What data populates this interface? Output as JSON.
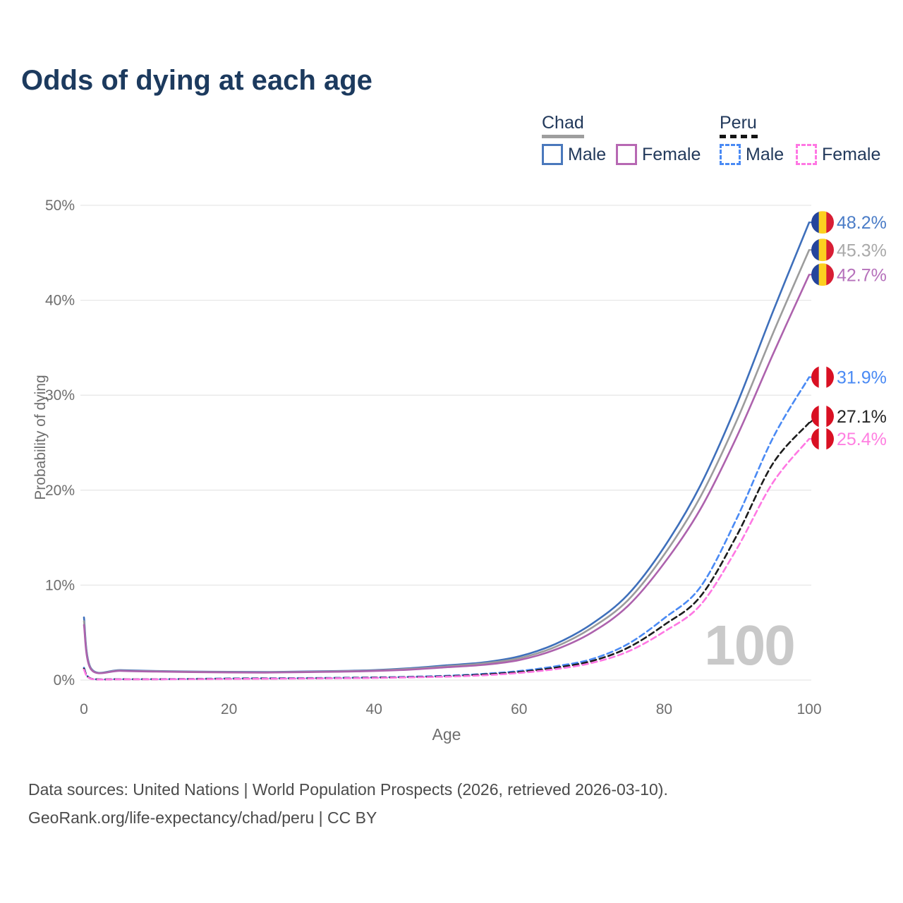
{
  "title": "Odds of dying at each age",
  "watermark": "100",
  "legend": {
    "groups": [
      {
        "name": "Chad",
        "line_style": "solid",
        "line_color": "#9c9c9c",
        "items": [
          {
            "label": "Male",
            "color": "#3e6fbb",
            "style": "solid"
          },
          {
            "label": "Female",
            "color": "#ad62ad",
            "style": "solid"
          }
        ]
      },
      {
        "name": "Peru",
        "line_style": "dashed",
        "line_color": "#141414",
        "items": [
          {
            "label": "Male",
            "color": "#4a8af4",
            "style": "dashed"
          },
          {
            "label": "Female",
            "color": "#ff77e3",
            "style": "dashed"
          }
        ]
      }
    ]
  },
  "axes": {
    "x": {
      "title": "Age",
      "ticks": [
        0,
        20,
        40,
        60,
        80,
        100
      ]
    },
    "y": {
      "title": "Probability of dying",
      "ticks": [
        0,
        10,
        20,
        30,
        40,
        50
      ],
      "tick_suffix": "%"
    }
  },
  "footer": {
    "line1": "Data sources: United Nations | World Population Prospects (2026, retrieved 2026-03-10).",
    "line2": "GeoRank.org/life-expectancy/chad/peru | CC BY"
  },
  "chart_data": {
    "type": "line",
    "title": "Odds of dying at each age",
    "xlabel": "Age",
    "ylabel": "Probability of dying",
    "xlim": [
      0,
      100
    ],
    "ylim": [
      0,
      50
    ],
    "grid": "horizontal",
    "legend_position": "top-right",
    "x_ages": [
      0,
      1,
      5,
      10,
      15,
      20,
      25,
      30,
      35,
      40,
      45,
      50,
      55,
      60,
      65,
      70,
      75,
      80,
      85,
      90,
      95,
      100
    ],
    "flags": {
      "chad": [
        "#24449c",
        "#fcd020",
        "#d81e34"
      ],
      "peru": [
        "#d91023",
        "#ffffff",
        "#d91023"
      ]
    },
    "series": [
      {
        "name": "Chad Male",
        "country": "Chad",
        "sex": "Male",
        "style": "solid",
        "color": "#3e6fbb",
        "flag": "chad",
        "end_label": "48.2%",
        "end_label_color": "#4a7cc7",
        "values": [
          6.6,
          1.2,
          1.05,
          0.95,
          0.9,
          0.87,
          0.85,
          0.9,
          0.95,
          1.05,
          1.25,
          1.55,
          1.85,
          2.5,
          3.8,
          5.9,
          9.0,
          14.0,
          20.5,
          29.0,
          38.8,
          48.2
        ]
      },
      {
        "name": "Chad Both sexes",
        "country": "Chad",
        "sex": "Both",
        "style": "solid",
        "color": "#9c9c9c",
        "flag": "chad",
        "end_label": "45.3%",
        "end_label_color": "#a9a9a9",
        "values": [
          6.2,
          1.15,
          1.0,
          0.92,
          0.87,
          0.84,
          0.82,
          0.86,
          0.92,
          1.0,
          1.18,
          1.45,
          1.75,
          2.3,
          3.5,
          5.5,
          8.4,
          13.2,
          19.3,
          27.3,
          36.5,
          45.3
        ]
      },
      {
        "name": "Chad Female",
        "country": "Chad",
        "sex": "Female",
        "style": "solid",
        "color": "#ad62ad",
        "flag": "chad",
        "end_label": "42.7%",
        "end_label_color": "#b671bb",
        "values": [
          5.8,
          1.1,
          0.97,
          0.89,
          0.84,
          0.8,
          0.79,
          0.83,
          0.88,
          0.96,
          1.1,
          1.35,
          1.6,
          2.1,
          3.2,
          5.0,
          7.8,
          12.3,
          18.0,
          25.6,
          34.3,
          42.7
        ]
      },
      {
        "name": "Peru Male",
        "country": "Peru",
        "sex": "Male",
        "style": "dashed",
        "color": "#4a8af4",
        "flag": "peru",
        "end_label": "31.9%",
        "end_label_color": "#4a8af4",
        "values": [
          1.3,
          0.15,
          0.1,
          0.1,
          0.13,
          0.17,
          0.19,
          0.21,
          0.24,
          0.28,
          0.35,
          0.45,
          0.65,
          0.95,
          1.45,
          2.2,
          3.8,
          6.5,
          9.8,
          17.0,
          25.5,
          31.9
        ]
      },
      {
        "name": "Peru Both sexes",
        "country": "Peru",
        "sex": "Both",
        "style": "dashed",
        "color": "#1c1c1c",
        "flag": "peru",
        "end_label": "27.1%",
        "end_label_color": "#262626",
        "values": [
          1.2,
          0.14,
          0.09,
          0.09,
          0.11,
          0.14,
          0.16,
          0.18,
          0.21,
          0.25,
          0.31,
          0.4,
          0.58,
          0.85,
          1.3,
          2.0,
          3.4,
          5.8,
          8.8,
          15.2,
          22.8,
          27.1
        ]
      },
      {
        "name": "Peru Female",
        "country": "Peru",
        "sex": "Female",
        "style": "dashed",
        "color": "#ff77e3",
        "flag": "peru",
        "end_label": "25.4%",
        "end_label_color": "#ff7fe1",
        "values": [
          1.1,
          0.13,
          0.08,
          0.08,
          0.1,
          0.12,
          0.14,
          0.16,
          0.19,
          0.22,
          0.28,
          0.36,
          0.5,
          0.75,
          1.15,
          1.8,
          3.0,
          5.1,
          7.9,
          13.8,
          20.8,
          25.4
        ]
      }
    ]
  }
}
